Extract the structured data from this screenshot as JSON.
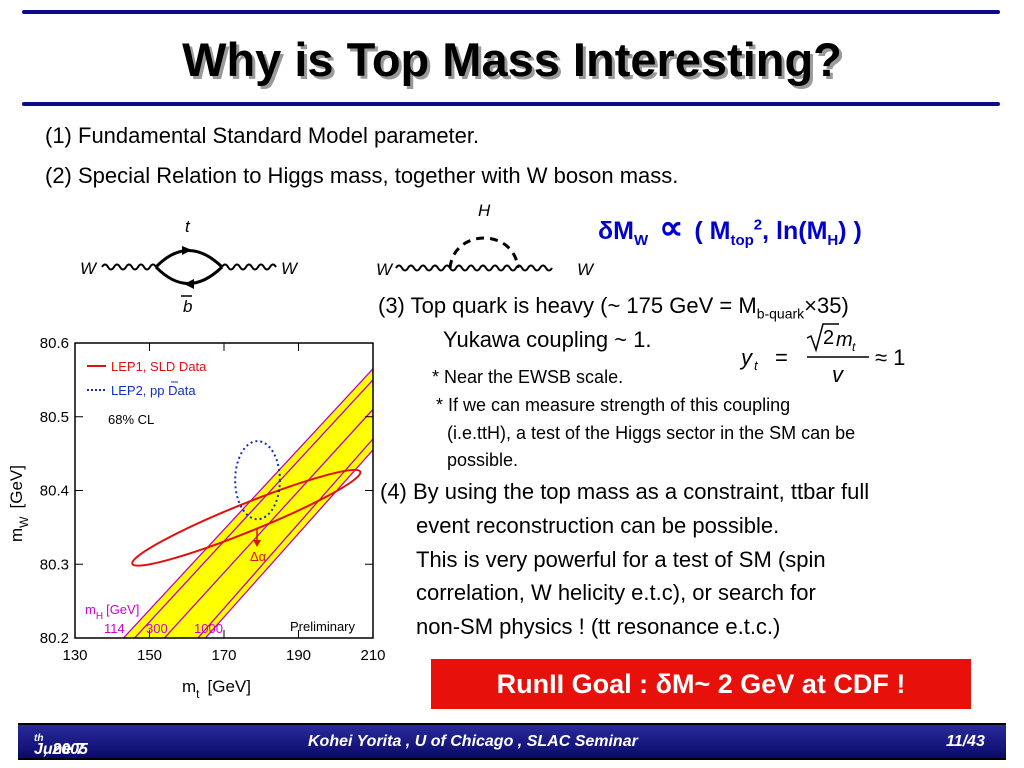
{
  "slide": {
    "title": "Why is Top Mass Interesting?",
    "point1": "(1)  Fundamental Standard Model parameter.",
    "point2": "(2) Special Relation to Higgs mass, together with W boson mass.",
    "relation": {
      "delta": "δ",
      "mw": "M",
      "mw_sub": "W",
      "prop": "∝",
      "open": " ( M",
      "mtop_sub": "top",
      "mtop_sup": "2",
      "comma": ",   ln(M",
      "mh_sub": "H",
      "close": ") )"
    },
    "point3_line1_a": "(3)  Top quark is heavy (~ 175 GeV = M",
    "point3_line1_sub": "b-quark",
    "point3_line1_b": "×35)",
    "point3_line2": "Yukawa coupling  ~ 1.",
    "note1": "* Near the EWSB scale.",
    "note2_line1": "* If we can measure strength of this coupling",
    "note2_line2": "(i.e.ttH),  a test of the Higgs sector in the SM can be",
    "note2_line3": "possible.",
    "formula": {
      "lhs": "y",
      "lhs_sub": "t",
      "eq": "=",
      "num": "2m",
      "num_sub": "t",
      "den": "v",
      "approx": "≈ 1"
    },
    "point4_lines": [
      "(4) By using the top mass as a constraint, ttbar full",
      "event reconstruction can be possible.",
      "This is very powerful for a test of SM (spin",
      "correlation, W helicity   e.t.c), or search for",
      "non-SM physics ! (tt resonance e.t.c.)"
    ],
    "goal_banner": "RunII Goal : δM~ 2 GeV at CDF !",
    "footer": {
      "date": "June 7",
      "date_sup": "th",
      "date_rest": " , 2005",
      "author": "Kohei Yorita , U of Chicago , SLAC Seminar",
      "page": "11/43"
    }
  },
  "diagrams": {
    "loop": {
      "W_left": "W",
      "W_right": "W",
      "top": "t",
      "bottom": "b"
    },
    "higgs": {
      "W_left": "W",
      "W_right": "W",
      "H": "H"
    }
  },
  "chart_data": {
    "type": "scatter",
    "xlabel": "m",
    "xlabel_sub": "t",
    "xlabel_unit": "[GeV]",
    "ylabel": "m",
    "ylabel_sub": "W",
    "ylabel_unit": "[GeV]",
    "xlim": [
      130,
      210
    ],
    "ylim": [
      80.2,
      80.6
    ],
    "xticks": [
      130,
      150,
      170,
      190,
      210
    ],
    "yticks": [
      80.2,
      80.3,
      80.4,
      80.5,
      80.6
    ],
    "xtick_labels": [
      "130",
      "150",
      "170",
      "190",
      "210"
    ],
    "ytick_labels": [
      "80.2",
      "80.3",
      "80.4",
      "80.5",
      "80.6"
    ],
    "legend": [
      {
        "label": "LEP1, SLD Data",
        "color": "#e01010",
        "style": "solid"
      },
      {
        "label": "LEP2, pp Data",
        "color": "#1030c0",
        "style": "dotted"
      }
    ],
    "cl_label": "68% CL",
    "higgs_label": "m",
    "higgs_label_sub": "H",
    "higgs_label_unit": "[GeV]",
    "higgs_masses": [
      "114",
      "300",
      "1000"
    ],
    "band_color": "#ffff00",
    "band_edge_color": "#c000c0",
    "delta_alpha_label": "Δα",
    "preliminary_label": "Preliminary",
    "sm_band": {
      "mh_114": {
        "points": [
          [
            146,
            80.2
          ],
          [
            210,
            80.55
          ]
        ]
      },
      "mh_300": {
        "points": [
          [
            154,
            80.2
          ],
          [
            210,
            80.51
          ]
        ]
      },
      "mh_1000": {
        "points": [
          [
            163,
            80.2
          ],
          [
            210,
            80.47
          ]
        ]
      }
    },
    "band_outer": {
      "upper": [
        [
          143,
          80.2
        ],
        [
          210,
          80.565
        ]
      ],
      "lower": [
        [
          165,
          80.2
        ],
        [
          210,
          80.455
        ]
      ]
    },
    "ellipses": [
      {
        "name": "LEP1, SLD Data",
        "cx": 176,
        "cy": 80.363,
        "rx": 33,
        "ry": 0.019,
        "rotation_deg": -22,
        "color": "#e01010"
      },
      {
        "name": "LEP2, pp Data",
        "cx": 179,
        "cy": 80.414,
        "rx": 6,
        "ry": 0.053,
        "rotation_deg": 0,
        "color": "#1030c0"
      }
    ]
  }
}
